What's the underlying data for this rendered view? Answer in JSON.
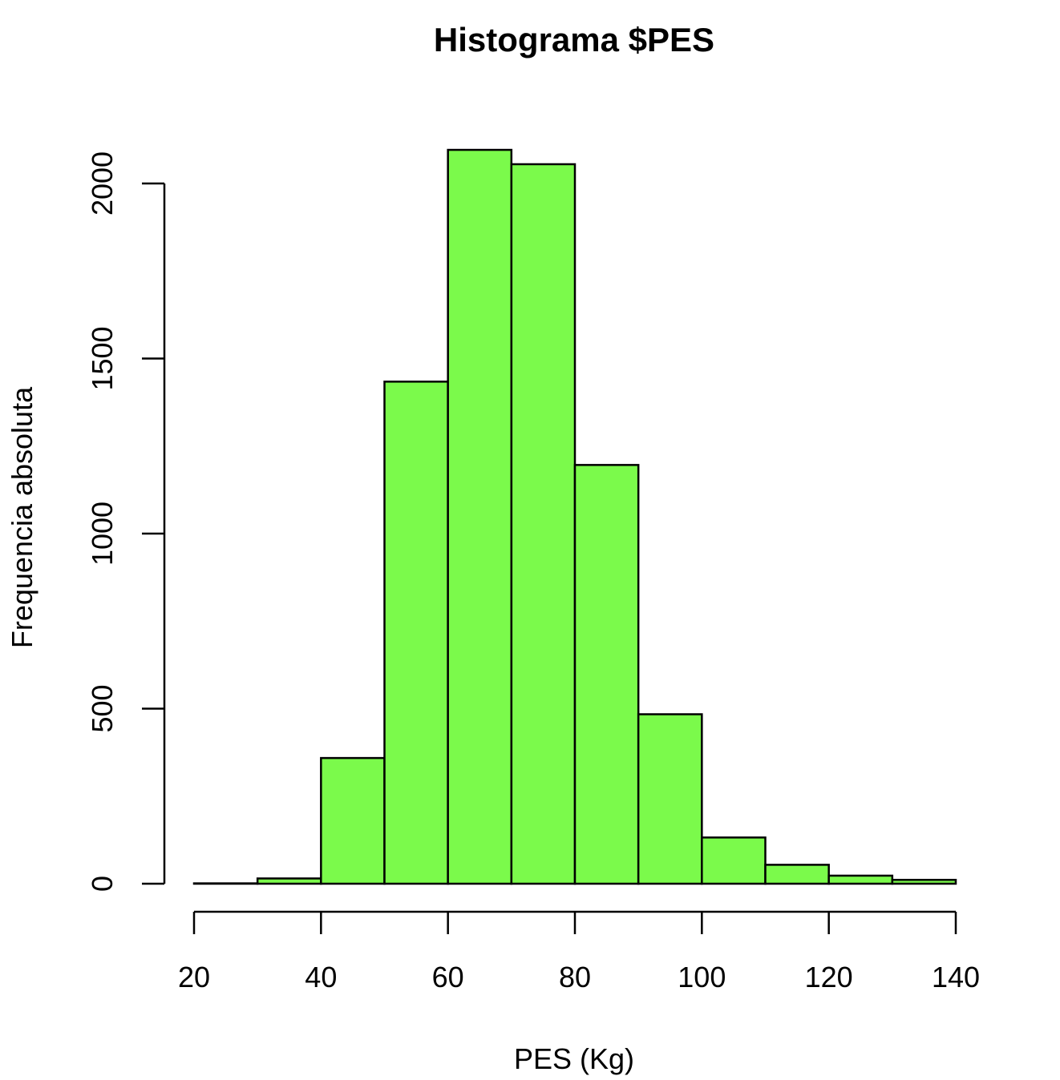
{
  "chart_data": {
    "type": "histogram",
    "title": "Histograma $PES",
    "xlabel": "PES (Kg)",
    "ylabel": "Frequencia absoluta",
    "bins": [
      {
        "start": 20,
        "end": 30,
        "count": 1
      },
      {
        "start": 30,
        "end": 40,
        "count": 15
      },
      {
        "start": 40,
        "end": 50,
        "count": 359
      },
      {
        "start": 50,
        "end": 60,
        "count": 1434
      },
      {
        "start": 60,
        "end": 70,
        "count": 2096
      },
      {
        "start": 70,
        "end": 80,
        "count": 2055
      },
      {
        "start": 80,
        "end": 90,
        "count": 1196
      },
      {
        "start": 90,
        "end": 100,
        "count": 484
      },
      {
        "start": 100,
        "end": 110,
        "count": 132
      },
      {
        "start": 110,
        "end": 120,
        "count": 54
      },
      {
        "start": 120,
        "end": 130,
        "count": 23
      },
      {
        "start": 130,
        "end": 140,
        "count": 11
      }
    ],
    "xlim": [
      20,
      140
    ],
    "ylim": [
      0,
      2000
    ],
    "x_ticks": [
      "20",
      "40",
      "60",
      "80",
      "100",
      "120",
      "140"
    ],
    "y_ticks": [
      "0",
      "500",
      "1000",
      "1500",
      "2000"
    ],
    "bar_color": "#7BFA4B",
    "grid": false,
    "legend": "none"
  }
}
